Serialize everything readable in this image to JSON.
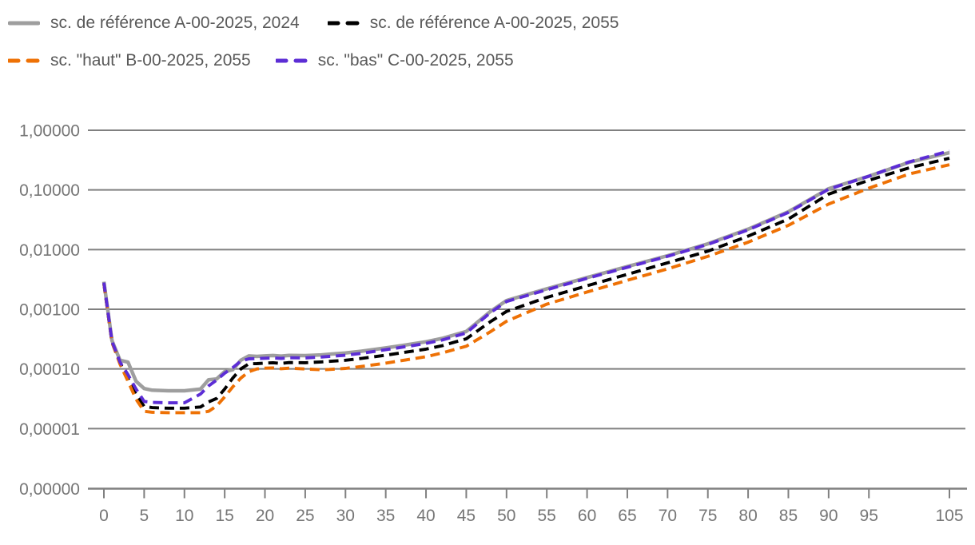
{
  "chart_data": {
    "type": "line",
    "title": "",
    "xlabel": "",
    "ylabel": "",
    "x_axis": {
      "range": [
        0,
        107
      ],
      "tick_ages": [
        0,
        5,
        10,
        15,
        20,
        25,
        30,
        35,
        40,
        45,
        50,
        55,
        60,
        65,
        70,
        75,
        80,
        85,
        90,
        95,
        105
      ],
      "tick_labels": [
        "0",
        "5",
        "10",
        "15",
        "20",
        "25",
        "30",
        "35",
        "40",
        "45",
        "50",
        "55",
        "60",
        "65",
        "70",
        "75",
        "80",
        "85",
        "90",
        "95",
        "105"
      ]
    },
    "y_axis": {
      "scale": "log",
      "tick_values": [
        1,
        0.1,
        0.01,
        0.001,
        0.0001,
        1e-05,
        0
      ],
      "tick_labels": [
        "1,00000",
        "0,10000",
        "0,01000",
        "0,00100",
        "0,00010",
        "0,00001",
        "0,00000"
      ],
      "grid": true
    },
    "legend_position": "top-left",
    "ages": [
      0,
      1,
      2,
      3,
      4,
      5,
      6,
      8,
      10,
      12,
      13,
      14,
      15,
      16,
      17,
      18,
      19,
      20,
      21,
      22,
      23,
      25,
      27,
      28,
      30,
      32,
      35,
      38,
      40,
      42,
      45,
      48,
      50,
      55,
      60,
      65,
      70,
      75,
      80,
      85,
      90,
      95,
      100,
      105
    ],
    "series": [
      {
        "name": "sc. de référence A-00-2025, 2024",
        "color": "#9e9e9e",
        "style": "solid",
        "values": [
          0.0029,
          0.0003,
          0.00014,
          0.00013,
          6.2e-05,
          4.7e-05,
          4.4e-05,
          4.3e-05,
          4.3e-05,
          4.6e-05,
          6.6e-05,
          6.8e-05,
          9e-05,
          9.7e-05,
          0.00014,
          0.000165,
          0.000162,
          0.000165,
          0.000168,
          0.000164,
          0.000169,
          0.000167,
          0.000172,
          0.000176,
          0.000185,
          0.000198,
          0.000225,
          0.000258,
          0.000285,
          0.000325,
          0.000425,
          0.00092,
          0.0014,
          0.0022,
          0.0034,
          0.0052,
          0.0079,
          0.0125,
          0.022,
          0.043,
          0.105,
          0.17,
          0.29,
          0.42
        ]
      },
      {
        "name": "sc. de référence A-00-2025, 2055",
        "color": "#000000",
        "style": "dashed",
        "values": [
          0.0027,
          0.00028,
          0.000125,
          7e-05,
          3.7e-05,
          2.35e-05,
          2.25e-05,
          2.2e-05,
          2.2e-05,
          2.3e-05,
          2.8e-05,
          3.2e-05,
          4.6e-05,
          7e-05,
          0.0001,
          0.000122,
          0.000123,
          0.000125,
          0.000127,
          0.000124,
          0.000128,
          0.000127,
          0.000131,
          0.000134,
          0.00014,
          0.00015,
          0.00017,
          0.000196,
          0.000215,
          0.000245,
          0.00032,
          0.00062,
          0.00092,
          0.00158,
          0.00248,
          0.00385,
          0.006,
          0.0094,
          0.0168,
          0.0325,
          0.085,
          0.145,
          0.235,
          0.34
        ]
      },
      {
        "name": "sc. \"haut\" B-00-2025, 2055",
        "color": "#ee7105",
        "style": "dashed",
        "values": [
          0.0027,
          0.00028,
          0.00012,
          6.2e-05,
          3.1e-05,
          1.95e-05,
          1.88e-05,
          1.85e-05,
          1.85e-05,
          1.85e-05,
          1.95e-05,
          2.4e-05,
          3.4e-05,
          5e-05,
          7e-05,
          9e-05,
          0.0001,
          0.000103,
          0.000104,
          0.000101,
          0.000103,
          0.0001,
          9.7e-05,
          9.8e-05,
          0.000102,
          0.00011,
          0.000125,
          0.000145,
          0.00016,
          0.000185,
          0.00024,
          0.00042,
          0.00063,
          0.00122,
          0.00195,
          0.00305,
          0.00475,
          0.0077,
          0.0133,
          0.0255,
          0.058,
          0.107,
          0.185,
          0.265
        ]
      },
      {
        "name": "sc. \"bas\" C-00-2025, 2055",
        "color": "#5c2dd5",
        "style": "dashed",
        "values": [
          0.0028,
          0.00029,
          0.00013,
          8e-05,
          4.6e-05,
          2.85e-05,
          2.75e-05,
          2.7e-05,
          2.7e-05,
          3.8e-05,
          5.2e-05,
          6.5e-05,
          8.5e-05,
          0.000105,
          0.000135,
          0.000148,
          0.000149,
          0.000151,
          0.000153,
          0.00015,
          0.000154,
          0.000153,
          0.000158,
          0.000162,
          0.00017,
          0.000183,
          0.00021,
          0.000242,
          0.000268,
          0.000305,
          0.0004,
          0.00088,
          0.00135,
          0.00212,
          0.0033,
          0.00505,
          0.0077,
          0.0122,
          0.0214,
          0.042,
          0.103,
          0.17,
          0.295,
          0.45
        ]
      }
    ],
    "colors": {
      "gridline": "#808080",
      "axis": "#808080",
      "tick_label": "#767676",
      "legend_text": "#595959"
    }
  }
}
